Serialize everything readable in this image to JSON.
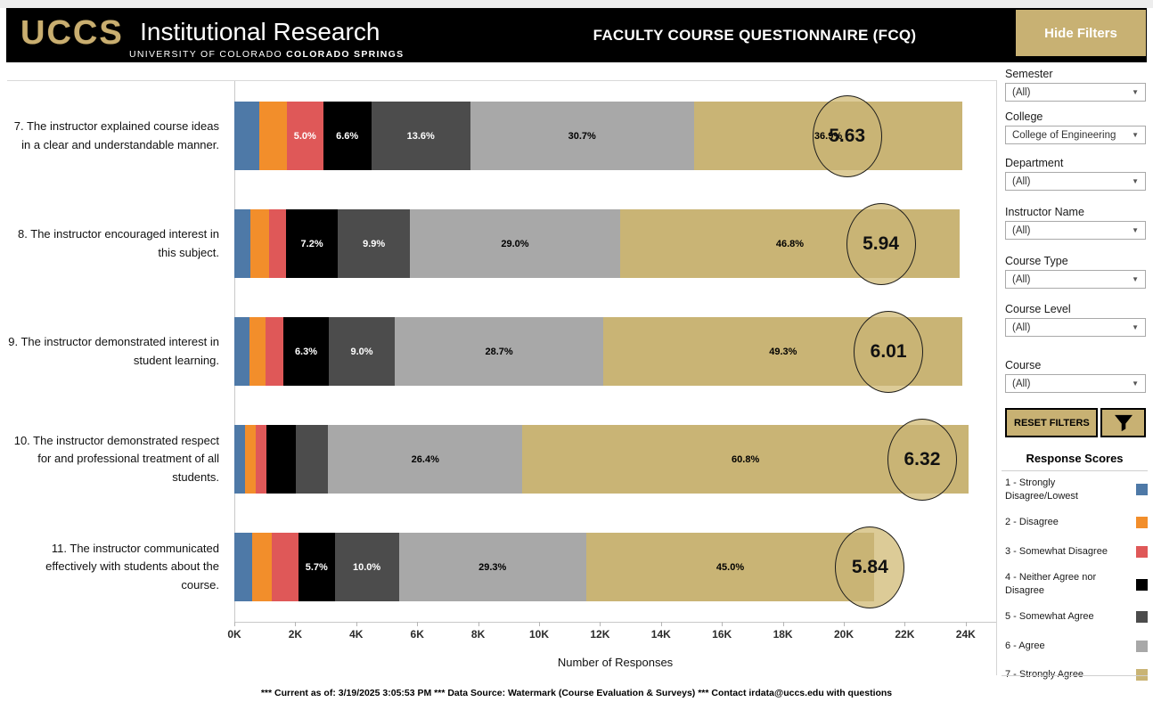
{
  "header": {
    "logo_acronym": "UCCS",
    "logo_title": "Institutional Research",
    "logo_subtitle_regular": "UNIVERSITY OF COLORADO ",
    "logo_subtitle_bold": "COLORADO SPRINGS",
    "page_title": "FACULTY COURSE QUESTIONNAIRE (FCQ)",
    "hide_filters_label": "Hide Filters"
  },
  "filters": {
    "fields": [
      {
        "label": "Semester",
        "value": "(All)"
      },
      {
        "label": "College",
        "value": "College of Engineering"
      },
      {
        "label": "Department",
        "value": "(All)"
      },
      {
        "label": "Instructor Name",
        "value": "(All)"
      },
      {
        "label": "Course Type",
        "value": "(All)"
      },
      {
        "label": "Course Level",
        "value": "(All)"
      },
      {
        "label": "Course",
        "value": "(All)"
      }
    ],
    "reset_label": "RESET FILTERS"
  },
  "legend": {
    "title": "Response Scores",
    "items": [
      {
        "label": "1 - Strongly Disagree/Lowest",
        "color": "#4E79A7"
      },
      {
        "label": "2 - Disagree",
        "color": "#F28E2B"
      },
      {
        "label": "3 - Somewhat Disagree",
        "color": "#DF5858"
      },
      {
        "label": "4 - Neither Agree nor Disagree",
        "color": "#000000"
      },
      {
        "label": "5 - Somewhat Agree",
        "color": "#4C4C4C"
      },
      {
        "label": "6 - Agree",
        "color": "#A8A8A8"
      },
      {
        "label": "7 - Strongly Agree",
        "color": "#C9B475"
      }
    ]
  },
  "chart_data": {
    "type": "bar",
    "subtype": "horizontal-stacked",
    "title": "",
    "xlabel": "Number of Responses",
    "ylabel": "",
    "x_ticks": [
      "0K",
      "2K",
      "4K",
      "6K",
      "8K",
      "10K",
      "12K",
      "14K",
      "16K",
      "18K",
      "20K",
      "22K",
      "24K"
    ],
    "x_axis_max_k": 25,
    "score_scale_max": 7,
    "grid": false,
    "legend_position": "right-panel",
    "series_names": [
      "1 - Strongly Disagree/Lowest",
      "2 - Disagree",
      "3 - Somewhat Disagree",
      "4 - Neither Agree nor Disagree",
      "5 - Somewhat Agree",
      "6 - Agree",
      "7 - Strongly Agree"
    ],
    "colors": [
      "#4E79A7",
      "#F28E2B",
      "#DF5858",
      "#000000",
      "#4C4C4C",
      "#A8A8A8",
      "#C9B475"
    ],
    "label_text_colors": [
      "#ffffff",
      "#ffffff",
      "#ffffff",
      "#ffffff",
      "#ffffff",
      "#000000",
      "#000000"
    ],
    "rows": [
      {
        "question": "7. The instructor explained course ideas in a clear and understandable manner.",
        "avg_score": 5.63,
        "total_k": 23.9,
        "pcts": [
          3.4,
          3.8,
          5.0,
          6.6,
          13.6,
          30.7,
          36.9
        ],
        "labels": [
          "",
          "",
          "5.0%",
          "6.6%",
          "13.6%",
          "30.7%",
          "36.9%"
        ]
      },
      {
        "question": "8. The instructor encouraged interest in this subject.",
        "avg_score": 5.94,
        "total_k": 23.8,
        "pcts": [
          2.2,
          2.6,
          2.3,
          7.2,
          9.9,
          29.0,
          46.8
        ],
        "labels": [
          "",
          "",
          "",
          "7.2%",
          "9.9%",
          "29.0%",
          "46.8%"
        ]
      },
      {
        "question": "9. The instructor demonstrated interest in student learning.",
        "avg_score": 6.01,
        "total_k": 23.9,
        "pcts": [
          2.1,
          2.2,
          2.4,
          6.3,
          9.0,
          28.7,
          49.3
        ],
        "labels": [
          "",
          "",
          "",
          "6.3%",
          "9.0%",
          "28.7%",
          "49.3%"
        ]
      },
      {
        "question": "10. The instructor demonstrated respect for and professional treatment of all students.",
        "avg_score": 6.32,
        "total_k": 24.1,
        "pcts": [
          1.4,
          1.5,
          1.5,
          4.0,
          4.4,
          26.4,
          60.8
        ],
        "labels": [
          "",
          "",
          "",
          "",
          "",
          "26.4%",
          "60.8%"
        ]
      },
      {
        "question": "11. The instructor communicated effectively with students about the course.",
        "avg_score": 5.84,
        "total_k": 21.0,
        "pcts": [
          2.8,
          3.0,
          4.2,
          5.7,
          10.0,
          29.3,
          45.0
        ],
        "labels": [
          "",
          "",
          "",
          "5.7%",
          "10.0%",
          "29.3%",
          "45.0%"
        ]
      }
    ]
  },
  "footer": {
    "text": "*** Current as of: 3/19/2025 3:05:53 PM *** Data Source: Watermark (Course Evaluation & Surveys) *** Contact irdata@uccs.edu with questions"
  }
}
